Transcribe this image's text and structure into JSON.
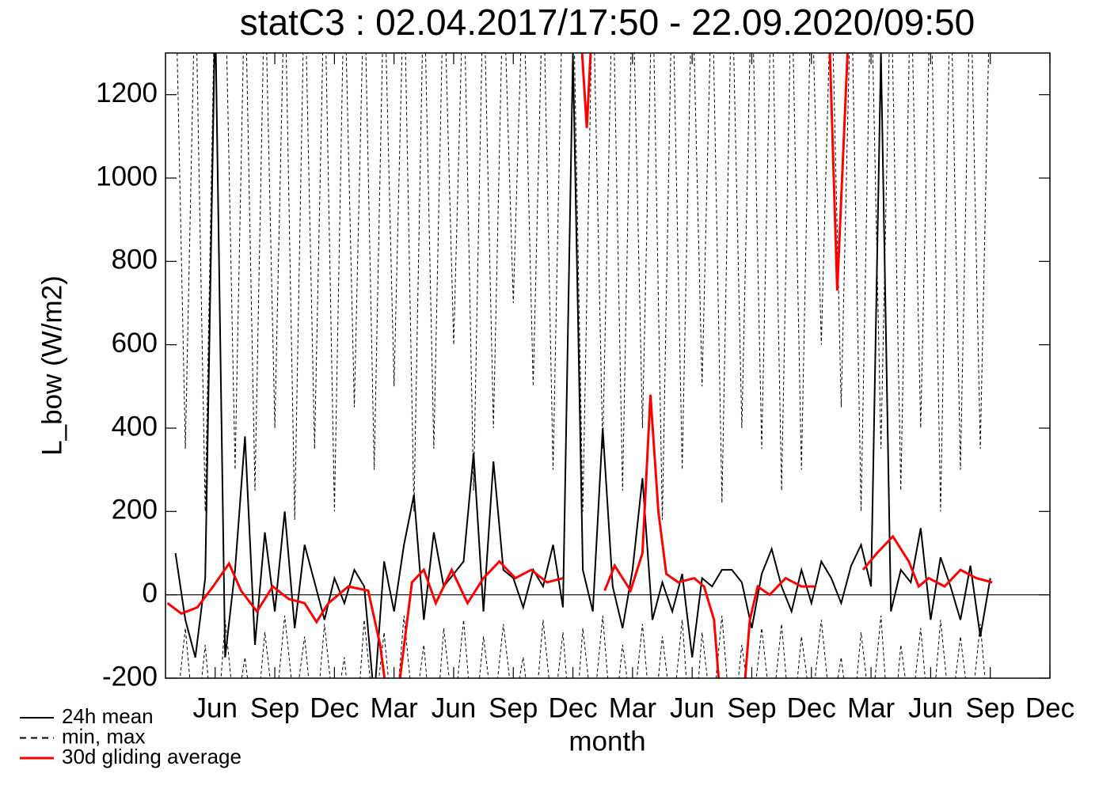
{
  "chart_data": {
    "type": "line",
    "title": "statC3 : 02.04.2017/17:50 - 22.09.2020/09:50",
    "y_label": "L_bow (W/m2)",
    "x_label": "month",
    "xlim": [
      2.5,
      47
    ],
    "xticks": [
      {
        "value": 5,
        "label": "Jun"
      },
      {
        "value": 8,
        "label": "Sep"
      },
      {
        "value": 11,
        "label": "Dec"
      },
      {
        "value": 14,
        "label": "Mar"
      },
      {
        "value": 17,
        "label": "Jun"
      },
      {
        "value": 20,
        "label": "Sep"
      },
      {
        "value": 23,
        "label": "Dec"
      },
      {
        "value": 26,
        "label": "Mar"
      },
      {
        "value": 29,
        "label": "Jun"
      },
      {
        "value": 32,
        "label": "Sep"
      },
      {
        "value": 35,
        "label": "Dec"
      },
      {
        "value": 38,
        "label": "Mar"
      },
      {
        "value": 41,
        "label": "Jun"
      },
      {
        "value": 44,
        "label": "Sep"
      },
      {
        "value": 47,
        "label": "Dec"
      }
    ],
    "ylim": [
      -200,
      1300
    ],
    "yticks": [
      -200,
      0,
      200,
      400,
      600,
      800,
      1000,
      1200
    ],
    "x": [
      3,
      3.5,
      4,
      4.5,
      5,
      5.5,
      6,
      6.5,
      7,
      7.5,
      8,
      8.5,
      9,
      9.5,
      10,
      10.5,
      11,
      11.5,
      12,
      12.5,
      13,
      13.5,
      14,
      14.5,
      15,
      15.5,
      16,
      16.5,
      17,
      17.5,
      18,
      18.5,
      19,
      19.5,
      20,
      20.5,
      21,
      21.5,
      22,
      22.5,
      23,
      23.5,
      24,
      24.5,
      25,
      25.5,
      26,
      26.5,
      27,
      27.5,
      28,
      28.5,
      29,
      29.5,
      30,
      30.5,
      31,
      31.5,
      32,
      32.5,
      33,
      33.5,
      34,
      34.5,
      35,
      35.5,
      36,
      36.5,
      37,
      37.5,
      38,
      38.5,
      39,
      39.5,
      40,
      40.5,
      41,
      41.5,
      42,
      42.5,
      43,
      43.5,
      44
    ],
    "series": [
      {
        "name": "24h mean",
        "color": "#000000",
        "values": [
          100,
          -60,
          -150,
          40,
          1400,
          -150,
          60,
          380,
          -120,
          150,
          -40,
          200,
          -80,
          120,
          30,
          -60,
          40,
          -20,
          60,
          20,
          -250,
          80,
          -40,
          120,
          240,
          -60,
          150,
          20,
          50,
          80,
          340,
          -40,
          320,
          60,
          40,
          -30,
          60,
          20,
          120,
          -30,
          1300,
          60,
          -40,
          400,
          20,
          -80,
          60,
          280,
          -60,
          30,
          -40,
          50,
          -150,
          40,
          20,
          60,
          60,
          30,
          -80,
          50,
          110,
          20,
          -40,
          60,
          -20,
          80,
          40,
          -20,
          70,
          120,
          20,
          1300,
          -40,
          60,
          30,
          160,
          -60,
          90,
          20,
          -60,
          70,
          -100,
          40
        ]
      },
      {
        "name": "min, max",
        "color": "#000000",
        "dashed": true,
        "max": [
          1500,
          350,
          1500,
          200,
          1500,
          1500,
          300,
          1500,
          250,
          1500,
          400,
          1500,
          180,
          1500,
          350,
          1500,
          200,
          1500,
          450,
          1500,
          300,
          1500,
          500,
          1500,
          200,
          1500,
          350,
          1500,
          600,
          1500,
          250,
          1500,
          400,
          1500,
          700,
          1500,
          500,
          1500,
          300,
          1500,
          1500,
          200,
          1500,
          350,
          1500,
          250,
          1500,
          400,
          1500,
          180,
          1500,
          300,
          1500,
          500,
          1500,
          220,
          1500,
          400,
          1500,
          350,
          1500,
          250,
          1500,
          300,
          1500,
          600,
          1500,
          450,
          1500,
          200,
          1500,
          350,
          1500,
          250,
          1500,
          400,
          1500,
          200,
          1500,
          300,
          1500,
          350,
          1500
        ],
        "min": [
          -300,
          -80,
          -350,
          -120,
          -400,
          -60,
          -300,
          -150,
          -350,
          -90,
          -300,
          -50,
          -280,
          -100,
          -350,
          -70,
          -300,
          -150,
          -400,
          -60,
          -300,
          -90,
          -350,
          -50,
          -300,
          -120,
          -400,
          -80,
          -300,
          -60,
          -350,
          -100,
          -300,
          -70,
          -280,
          -150,
          -350,
          -60,
          -300,
          -90,
          -400,
          -80,
          -300,
          -50,
          -350,
          -120,
          -300,
          -70,
          -350,
          -100,
          -300,
          -60,
          -400,
          -90,
          -300,
          -50,
          -350,
          -120,
          -300,
          -80,
          -300,
          -70,
          -350,
          -100,
          -280,
          -60,
          -300,
          -150,
          -350,
          -90,
          -300,
          -50,
          -400,
          -120,
          -300,
          -80,
          -350,
          -60,
          -300,
          -100,
          -300,
          -70,
          -350
        ]
      },
      {
        "name": "30d gliding average",
        "color": "#ff0000",
        "x": [
          2.6,
          3.3,
          4.1,
          4.9,
          5.7,
          6.3,
          7.1,
          7.9,
          8.7,
          9.5,
          10.1,
          10.7,
          11.7,
          12.7,
          13.3,
          13.8,
          14.3,
          14.9,
          15.5,
          16.1,
          16.9,
          17.7,
          18.5,
          19.3,
          20.1,
          20.9,
          21.7,
          22.5,
          22.8,
          23.2,
          23.7,
          24.1,
          24.3,
          24.6,
          25.1,
          25.9,
          26.5,
          26.9,
          27.3,
          27.7,
          28.3,
          29.1,
          29.6,
          30.1,
          30.5,
          31.0,
          31.5,
          31.9,
          32.3,
          32.9,
          33.7,
          34.5,
          35.2,
          35.5,
          35.8,
          36.3,
          37.0,
          37.2,
          37.6,
          38.3,
          39.1,
          39.9,
          40.4,
          40.9,
          41.7,
          42.5,
          43.3,
          44.1
        ],
        "values": [
          -20,
          -45,
          -30,
          20,
          75,
          10,
          -40,
          20,
          -10,
          -20,
          -65,
          -20,
          20,
          10,
          -120,
          -300,
          -200,
          30,
          60,
          -20,
          60,
          -20,
          40,
          80,
          40,
          60,
          30,
          40,
          null,
          1500,
          1120,
          1500,
          null,
          10,
          70,
          10,
          100,
          480,
          200,
          50,
          30,
          40,
          20,
          -60,
          -300,
          -400,
          -300,
          -60,
          20,
          0,
          40,
          20,
          20,
          null,
          1500,
          730,
          1500,
          null,
          60,
          100,
          140,
          80,
          20,
          40,
          20,
          60,
          40,
          30
        ]
      }
    ]
  }
}
